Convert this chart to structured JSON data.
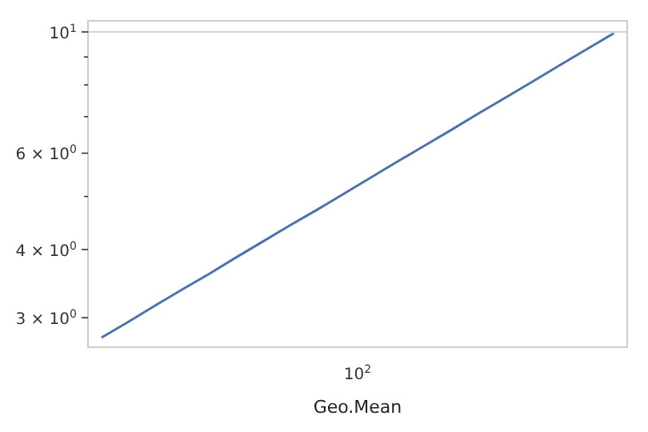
{
  "chart_data": {
    "type": "line",
    "xlabel": "Geo.Mean",
    "log": "y",
    "grid": "y",
    "categories": [
      null,
      null,
      null,
      null,
      null,
      null,
      null,
      null,
      null,
      null,
      null,
      null,
      null,
      null,
      null,
      null,
      null,
      null,
      null,
      null
    ],
    "annotations": [
      "10$^{2}$"
    ],
    "series": [
      {
        "color": "#4c72b0",
        "values": [
          2.76,
          2.95,
          3.16,
          3.38,
          3.61,
          3.87,
          4.14,
          4.43,
          4.73,
          5.06,
          5.42,
          5.8,
          6.2,
          6.63,
          7.1,
          7.59,
          8.12,
          8.69,
          9.3,
          9.94
        ]
      }
    ],
    "ylim": [
      2.65,
      10.48
    ],
    "yticks": [
      {
        "value": 3,
        "label": "3 × 10$^{0}$"
      },
      {
        "value": 4,
        "label": "4 × 10$^{0}$"
      },
      {
        "value": 5,
        "label": null
      },
      {
        "value": 6,
        "label": "6 × 10$^{0}$"
      },
      {
        "value": 7,
        "label": null
      },
      {
        "value": 8,
        "label": null
      },
      {
        "value": 9,
        "label": null
      },
      {
        "value": 10,
        "label": "10$^{1}$"
      }
    ],
    "marker": "none",
    "line_style": "solid"
  }
}
